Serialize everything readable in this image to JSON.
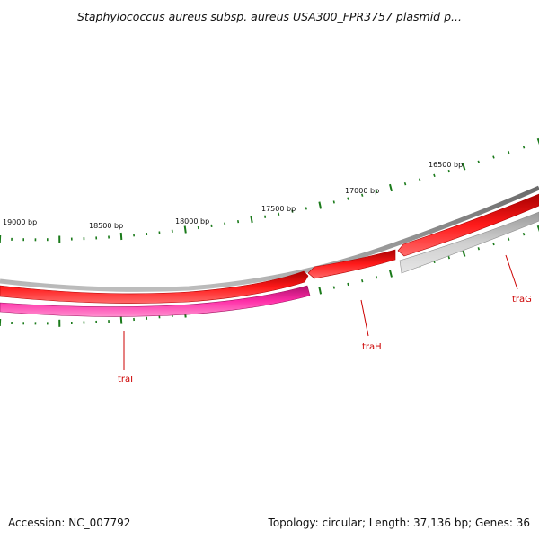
{
  "title": "Staphylococcus aureus subsp. aureus USA300_FPR3757 plasmid p...",
  "footer": {
    "accession": "Accession: NC_007792",
    "topology": "Topology: circular; Length: 37,136 bp; Genes: 36"
  },
  "ruler": {
    "labels": [
      "16500 bp",
      "17000 bp",
      "17500 bp",
      "18000 bp",
      "18500 bp",
      "19000 bp"
    ],
    "tick_color": "#1a7a1a"
  },
  "genes": [
    {
      "name": "traG",
      "label_color": "#cc0000",
      "color": "#c6c6c6"
    },
    {
      "name": "traH",
      "label_color": "#cc0000",
      "color": "#ee0000"
    },
    {
      "name": "traI",
      "label_color": "#cc0000",
      "color": "#ee1f9a"
    }
  ],
  "colors": {
    "backbone": "#808080",
    "forward_feature": "#ee0000",
    "pink_feature": "#ee1f9a",
    "grey_feature": "#c6c6c6"
  }
}
